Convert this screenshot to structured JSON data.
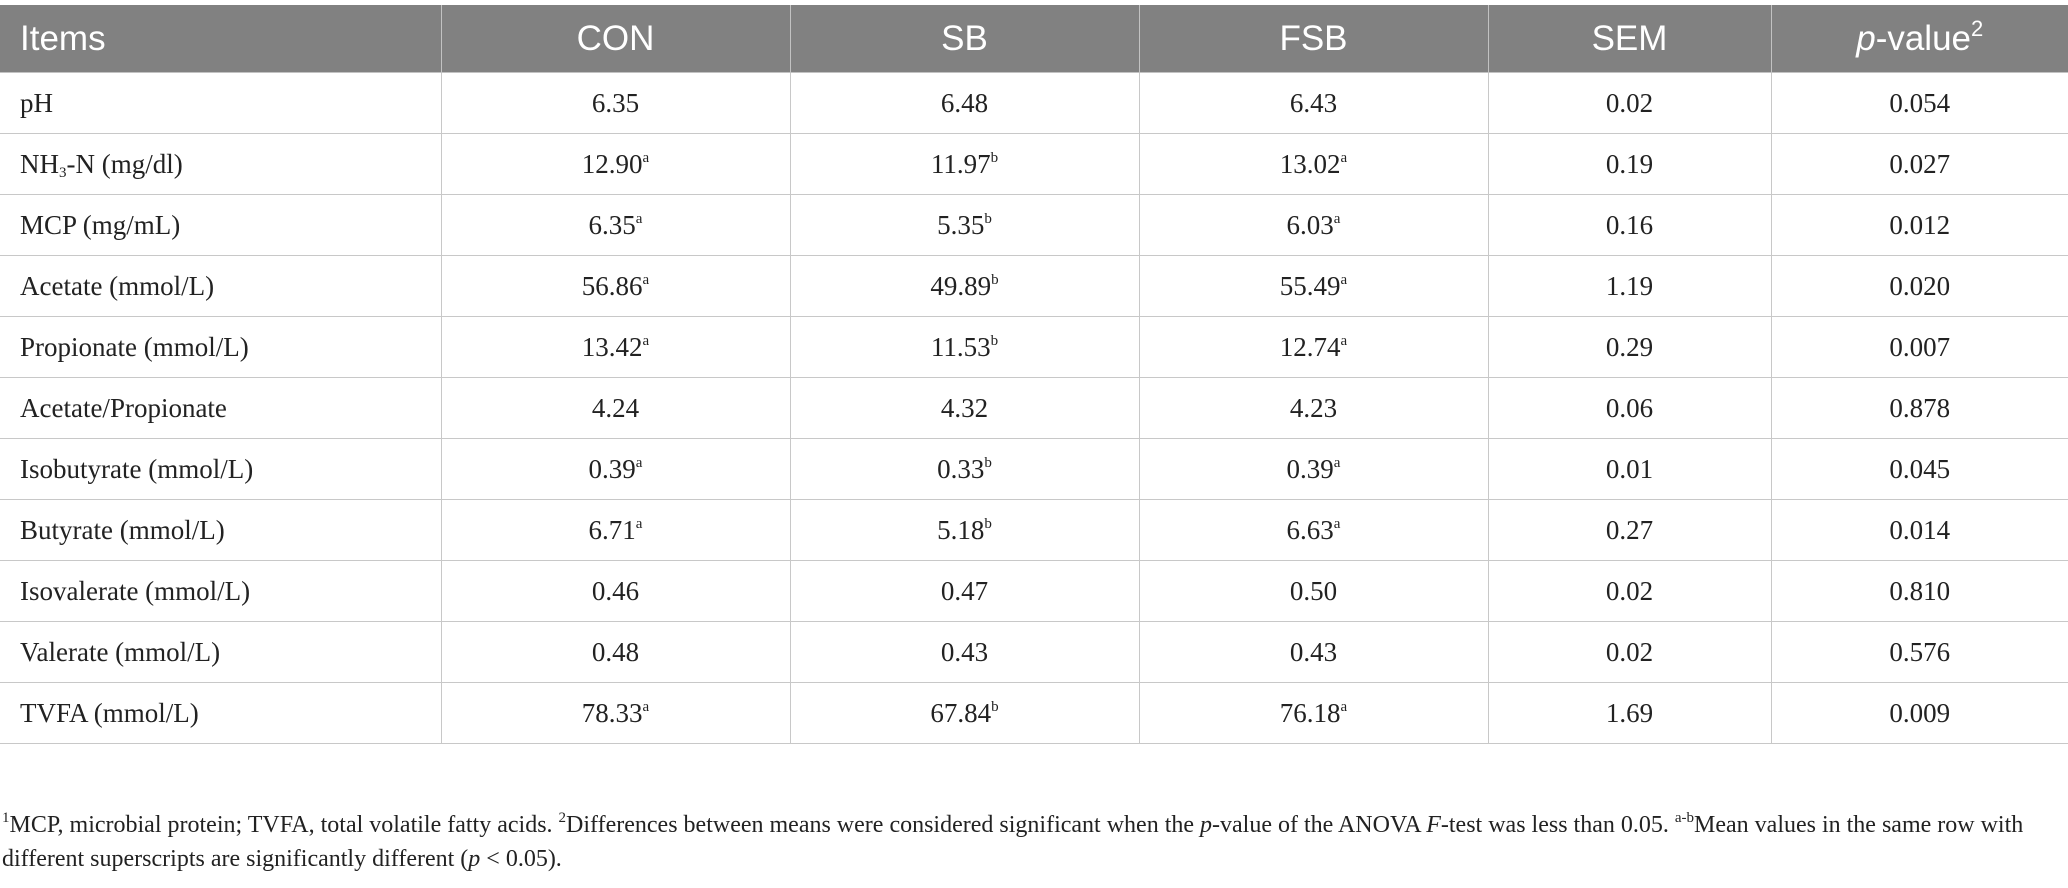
{
  "table": {
    "headers": [
      "Items",
      "CON",
      "SB",
      "FSB",
      "SEM",
      "p",
      "-value",
      "2"
    ],
    "rows": [
      {
        "l1": "pH",
        "l2": "",
        "l3": "",
        "con": "6.35",
        "con_s": "",
        "sb": "6.48",
        "sb_s": "",
        "fsb": "6.43",
        "fsb_s": "",
        "sem": "0.02",
        "p": "0.054"
      },
      {
        "l1": "NH",
        "l2": "3",
        "l3": "-N (mg/dl)",
        "con": "12.90",
        "con_s": "a",
        "sb": "11.97",
        "sb_s": "b",
        "fsb": "13.02",
        "fsb_s": "a",
        "sem": "0.19",
        "p": "0.027"
      },
      {
        "l1": "MCP (mg/mL)",
        "l2": "",
        "l3": "",
        "con": "6.35",
        "con_s": "a",
        "sb": "5.35",
        "sb_s": "b",
        "fsb": "6.03",
        "fsb_s": "a",
        "sem": "0.16",
        "p": "0.012"
      },
      {
        "l1": "Acetate (mmol/L)",
        "l2": "",
        "l3": "",
        "con": "56.86",
        "con_s": "a",
        "sb": "49.89",
        "sb_s": "b",
        "fsb": "55.49",
        "fsb_s": "a",
        "sem": "1.19",
        "p": "0.020"
      },
      {
        "l1": "Propionate (mmol/L)",
        "l2": "",
        "l3": "",
        "con": "13.42",
        "con_s": "a",
        "sb": "11.53",
        "sb_s": "b",
        "fsb": "12.74",
        "fsb_s": "a",
        "sem": "0.29",
        "p": "0.007"
      },
      {
        "l1": "Acetate/Propionate",
        "l2": "",
        "l3": "",
        "con": "4.24",
        "con_s": "",
        "sb": "4.32",
        "sb_s": "",
        "fsb": "4.23",
        "fsb_s": "",
        "sem": "0.06",
        "p": "0.878"
      },
      {
        "l1": "Isobutyrate (mmol/L)",
        "l2": "",
        "l3": "",
        "con": "0.39",
        "con_s": "a",
        "sb": "0.33",
        "sb_s": "b",
        "fsb": "0.39",
        "fsb_s": "a",
        "sem": "0.01",
        "p": "0.045"
      },
      {
        "l1": "Butyrate (mmol/L)",
        "l2": "",
        "l3": "",
        "con": "6.71",
        "con_s": "a",
        "sb": "5.18",
        "sb_s": "b",
        "fsb": "6.63",
        "fsb_s": "a",
        "sem": "0.27",
        "p": "0.014"
      },
      {
        "l1": "Isovalerate (mmol/L)",
        "l2": "",
        "l3": "",
        "con": "0.46",
        "con_s": "",
        "sb": "0.47",
        "sb_s": "",
        "fsb": "0.50",
        "fsb_s": "",
        "sem": "0.02",
        "p": "0.810"
      },
      {
        "l1": "Valerate (mmol/L)",
        "l2": "",
        "l3": "",
        "con": "0.48",
        "con_s": "",
        "sb": "0.43",
        "sb_s": "",
        "fsb": "0.43",
        "fsb_s": "",
        "sem": "0.02",
        "p": "0.576"
      },
      {
        "l1": "TVFA (mmol/L)",
        "l2": "",
        "l3": "",
        "con": "78.33",
        "con_s": "a",
        "sb": "67.84",
        "sb_s": "b",
        "fsb": "76.18",
        "fsb_s": "a",
        "sem": "1.69",
        "p": "0.009"
      }
    ]
  },
  "footnote": {
    "s1": "1",
    "t1": "MCP, microbial protein; TVFA, total volatile fatty acids. ",
    "s2": "2",
    "t2": "Differences between means were considered significant when the ",
    "i1": "p",
    "t3": "-value of the ANOVA ",
    "i2": "F",
    "t4": "-test was less than 0.05. ",
    "s3": "a-b",
    "t5": "Mean values in the same row with different superscripts are significantly different (",
    "i3": "p",
    "t6": " < 0.05)."
  }
}
